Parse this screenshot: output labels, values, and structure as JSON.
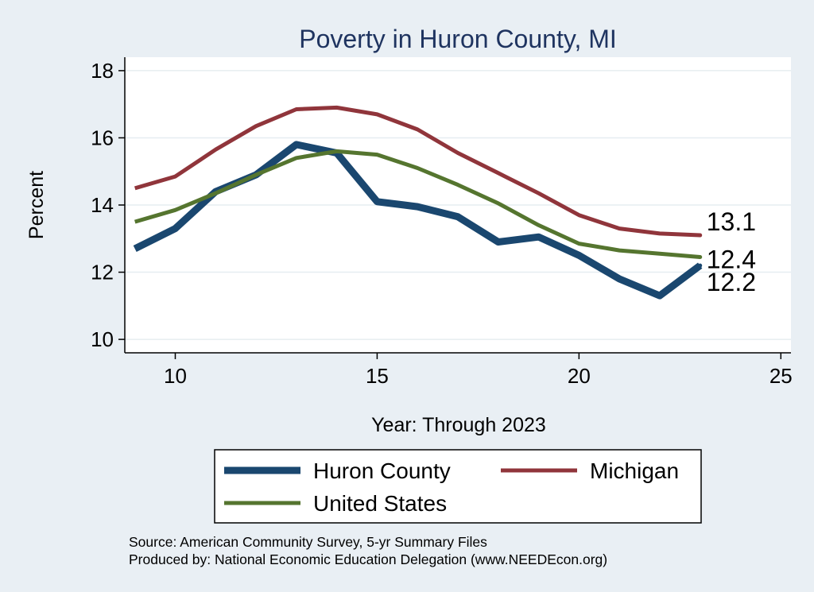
{
  "chart_data": {
    "type": "line",
    "title": "Poverty in Huron County, MI",
    "xlabel": "Year: Through 2023",
    "ylabel": "Percent",
    "xlim": [
      8.75,
      25.25
    ],
    "ylim": [
      9.6,
      18.4
    ],
    "xticks": [
      10,
      15,
      20,
      25
    ],
    "yticks": [
      10,
      12,
      14,
      16,
      18
    ],
    "grid": true,
    "legend_position": "bottom",
    "x": [
      9,
      10,
      11,
      12,
      13,
      14,
      15,
      16,
      17,
      18,
      19,
      20,
      21,
      22,
      23
    ],
    "series": [
      {
        "name": "Huron County",
        "color": "#1a476f",
        "stroke": "thick",
        "values": [
          12.7,
          13.3,
          14.4,
          14.9,
          15.8,
          15.55,
          14.1,
          13.95,
          13.65,
          12.9,
          13.05,
          12.5,
          11.8,
          11.3,
          12.2
        ],
        "end_label": "12.2"
      },
      {
        "name": "Michigan",
        "color": "#90353b",
        "stroke": "medium",
        "values": [
          14.5,
          14.85,
          15.65,
          16.35,
          16.85,
          16.9,
          16.7,
          16.25,
          15.55,
          14.95,
          14.35,
          13.7,
          13.3,
          13.15,
          13.1
        ],
        "end_label": "13.1"
      },
      {
        "name": "United States",
        "color": "#55752f",
        "stroke": "medium",
        "values": [
          13.5,
          13.85,
          14.35,
          14.9,
          15.4,
          15.6,
          15.5,
          15.1,
          14.6,
          14.05,
          13.4,
          12.85,
          12.65,
          12.55,
          12.45
        ],
        "end_label": "12.4"
      }
    ],
    "notes": [
      "Source: American Community Survey, 5-yr Summary Files",
      "Produced by: National Economic Education Delegation (www.NEEDEcon.org)"
    ]
  }
}
